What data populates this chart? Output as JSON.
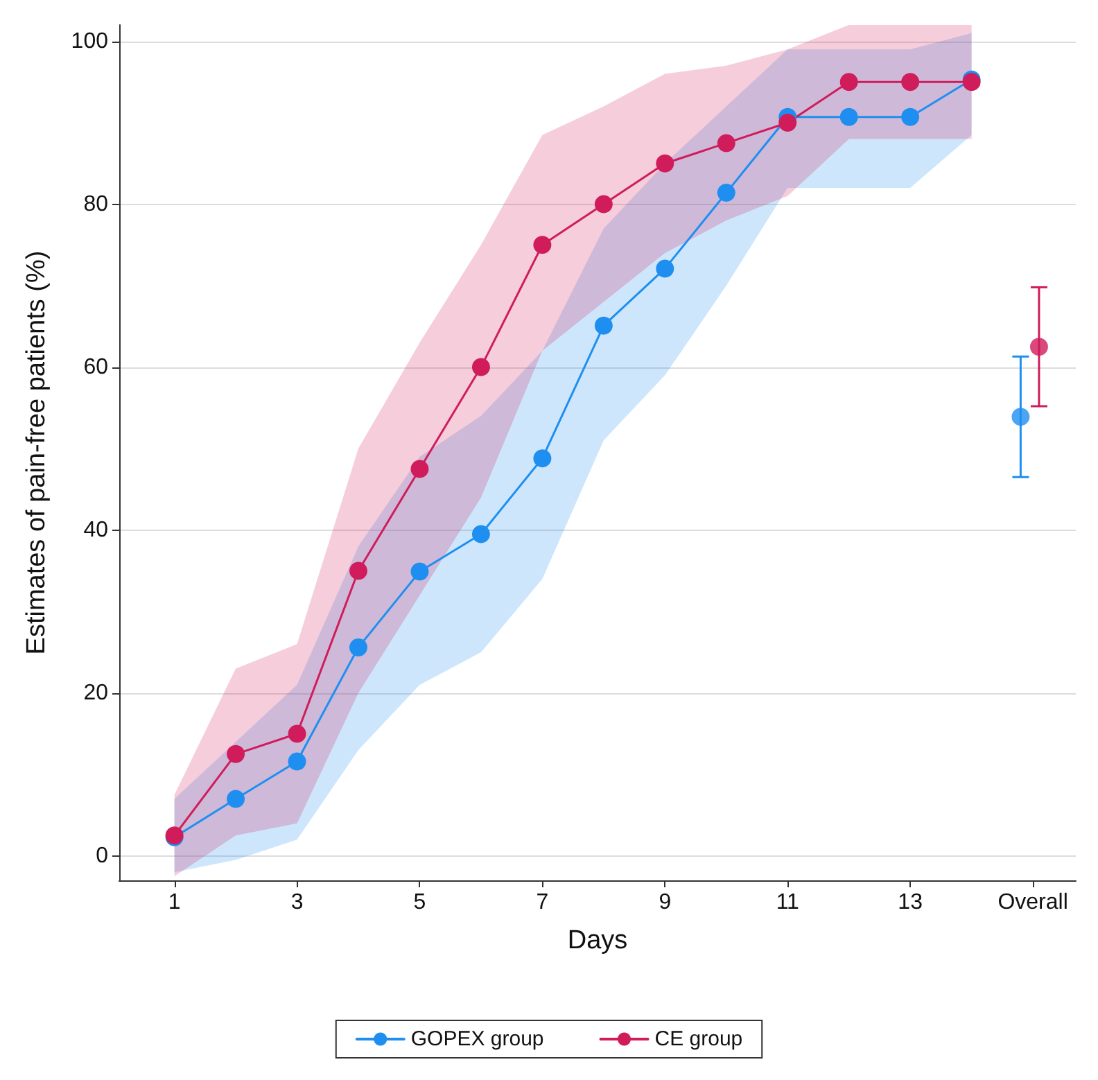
{
  "chart_data": {
    "type": "line",
    "xlabel": "Days",
    "ylabel": "Estimates of pain-free patients (%)",
    "x": [
      1,
      2,
      3,
      4,
      5,
      6,
      7,
      8,
      9,
      10,
      11,
      12,
      13,
      14
    ],
    "series": [
      {
        "name": "GOPEX group",
        "color": "#1e8ff0",
        "values": [
          2.3,
          7,
          11.6,
          25.6,
          34.9,
          39.5,
          48.8,
          65.1,
          72.1,
          81.4,
          90.7,
          90.7,
          90.7,
          95.3
        ],
        "lower": [
          -2,
          -0.5,
          2,
          13,
          21,
          25,
          34,
          51,
          59,
          70,
          82,
          82,
          82,
          88.5
        ],
        "upper": [
          7,
          14,
          21,
          38,
          49,
          54,
          62,
          77,
          85,
          92,
          99,
          99,
          99,
          101
        ]
      },
      {
        "name": "CE group",
        "color": "#d01c5b",
        "values": [
          2.5,
          12.5,
          15,
          35,
          47.5,
          60,
          75,
          80,
          85,
          87.5,
          90,
          95,
          95,
          95
        ],
        "lower": [
          -2.5,
          2.5,
          4,
          20,
          32,
          44,
          62,
          68,
          74,
          78,
          81,
          88,
          88,
          88
        ],
        "upper": [
          7.5,
          23,
          26,
          50,
          63,
          75,
          88.5,
          92,
          96,
          97,
          99,
          102,
          102,
          102
        ]
      },
      {
        "type": "scatter",
        "color": "#1e8ff0",
        "x": [
          14.8
        ],
        "values": [
          53.9
        ],
        "errors": [
          [
            46.5,
            61.3
          ]
        ]
      },
      {
        "type": "scatter",
        "color": "#d01c5b",
        "x": [
          15.1
        ],
        "values": [
          62.5
        ],
        "errors": [
          [
            55.2,
            69.8
          ]
        ]
      }
    ],
    "xlim": [
      0.1,
      15.7
    ],
    "xticks": [
      1,
      3,
      5,
      7,
      9,
      11,
      13,
      {
        "value": 15,
        "label": "Overall"
      }
    ],
    "ylim": [
      -3,
      102
    ],
    "yticks": [
      0,
      20,
      40,
      60,
      80,
      100
    ],
    "grid": "y",
    "legend": "bottom",
    "marker": "circle",
    "line_style": "solid"
  }
}
